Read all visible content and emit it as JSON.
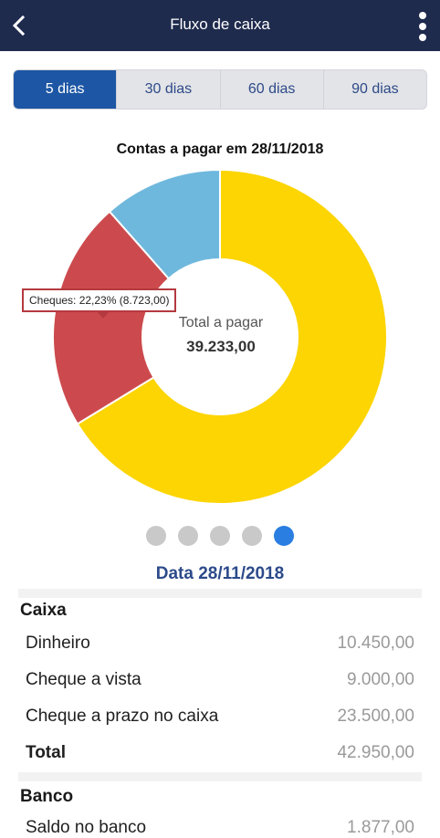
{
  "app": {
    "title": "Fluxo de caixa"
  },
  "tabs": [
    {
      "label": "5 dias",
      "active": true
    },
    {
      "label": "30 dias",
      "active": false
    },
    {
      "label": "60 dias",
      "active": false
    },
    {
      "label": "90 dias",
      "active": false
    }
  ],
  "chart": {
    "title": "Contas a pagar em 28/11/2018",
    "center_label": "Total a pagar",
    "center_value": "39.233,00",
    "tooltip": "Cheques: 22,23% (8.723,00)"
  },
  "chart_data": {
    "type": "pie",
    "total": 39233.0,
    "slices": [
      {
        "name": "",
        "value": 26000.0,
        "color": "#fcd502"
      },
      {
        "name": "Cheques",
        "value": 8723.0,
        "color": "#cc4a4d"
      },
      {
        "name": "",
        "value": 4510.0,
        "color": "#6fb8dd"
      }
    ]
  },
  "pager": {
    "count": 5,
    "active_index": 4
  },
  "detail": {
    "date_title": "Data 28/11/2018",
    "caixa": {
      "title": "Caixa",
      "rows": [
        {
          "label": "Dinheiro",
          "value": "10.450,00"
        },
        {
          "label": "Cheque a vista",
          "value": "9.000,00"
        },
        {
          "label": "Cheque a prazo no caixa",
          "value": "23.500,00"
        }
      ],
      "total_label": "Total",
      "total_value": "42.950,00"
    },
    "banco": {
      "title": "Banco",
      "rows": [
        {
          "label": "Saldo no banco",
          "value": "1.877,00"
        }
      ]
    }
  }
}
